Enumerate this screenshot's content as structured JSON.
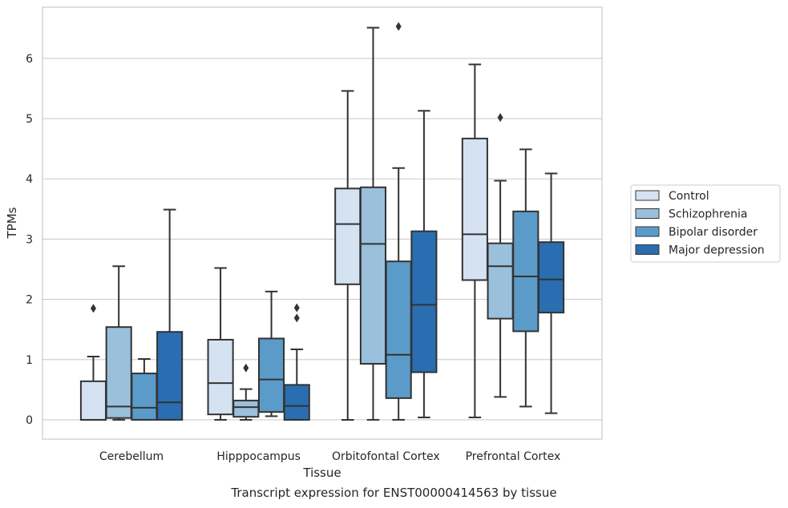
{
  "caption": "Transcript expression for ENST00000414563 by tissue",
  "chart_data": {
    "type": "boxplot",
    "xlabel": "Tissue",
    "ylabel": "TPMs",
    "ylim": [
      -0.32,
      6.85
    ],
    "yticks": [
      0,
      1,
      2,
      3,
      4,
      5,
      6
    ],
    "grid": "horizontal",
    "legend_position": "right",
    "categories": [
      "Cerebellum",
      "Hipppocampus",
      "Orbitofontal Cortex",
      "Prefrontal Cortex"
    ],
    "series": [
      {
        "name": "Control",
        "color": "#d4e2f2",
        "boxes": [
          {
            "whislo": 0.0,
            "q1": 0.0,
            "med": 0.0,
            "q3": 0.64,
            "whishi": 1.05,
            "fliers": [
              1.85
            ]
          },
          {
            "whislo": 0.0,
            "q1": 0.09,
            "med": 0.61,
            "q3": 1.33,
            "whishi": 2.52,
            "fliers": []
          },
          {
            "whislo": 0.0,
            "q1": 2.25,
            "med": 3.25,
            "q3": 3.84,
            "whishi": 5.46,
            "fliers": []
          },
          {
            "whislo": 0.04,
            "q1": 2.32,
            "med": 3.08,
            "q3": 4.67,
            "whishi": 5.9,
            "fliers": []
          }
        ]
      },
      {
        "name": "Schizophrenia",
        "color": "#9ac0db",
        "boxes": [
          {
            "whislo": 0.0,
            "q1": 0.03,
            "med": 0.22,
            "q3": 1.54,
            "whishi": 2.55,
            "fliers": []
          },
          {
            "whislo": 0.0,
            "q1": 0.05,
            "med": 0.21,
            "q3": 0.32,
            "whishi": 0.51,
            "fliers": [
              0.86
            ]
          },
          {
            "whislo": 0.0,
            "q1": 0.93,
            "med": 2.92,
            "q3": 3.86,
            "whishi": 6.51,
            "fliers": []
          },
          {
            "whislo": 0.38,
            "q1": 1.68,
            "med": 2.55,
            "q3": 2.93,
            "whishi": 3.97,
            "fliers": [
              5.02
            ]
          }
        ]
      },
      {
        "name": "Bipolar disorder",
        "color": "#5b9bc9",
        "boxes": [
          {
            "whislo": 0.0,
            "q1": 0.0,
            "med": 0.2,
            "q3": 0.77,
            "whishi": 1.01,
            "fliers": []
          },
          {
            "whislo": 0.06,
            "q1": 0.13,
            "med": 0.67,
            "q3": 1.35,
            "whishi": 2.13,
            "fliers": []
          },
          {
            "whislo": 0.0,
            "q1": 0.36,
            "med": 1.08,
            "q3": 2.63,
            "whishi": 4.18,
            "fliers": [
              6.53
            ]
          },
          {
            "whislo": 0.22,
            "q1": 1.47,
            "med": 2.38,
            "q3": 3.46,
            "whishi": 4.49,
            "fliers": []
          }
        ]
      },
      {
        "name": "Major depression",
        "color": "#2a6db0",
        "boxes": [
          {
            "whislo": 0.0,
            "q1": 0.0,
            "med": 0.29,
            "q3": 1.46,
            "whishi": 3.49,
            "fliers": []
          },
          {
            "whislo": 0.0,
            "q1": 0.0,
            "med": 0.23,
            "q3": 0.58,
            "whishi": 1.17,
            "fliers": [
              1.69,
              1.86
            ]
          },
          {
            "whislo": 0.04,
            "q1": 0.79,
            "med": 1.91,
            "q3": 3.13,
            "whishi": 5.13,
            "fliers": []
          },
          {
            "whislo": 0.11,
            "q1": 1.78,
            "med": 2.33,
            "q3": 2.95,
            "whishi": 4.09,
            "fliers": []
          }
        ]
      }
    ]
  }
}
